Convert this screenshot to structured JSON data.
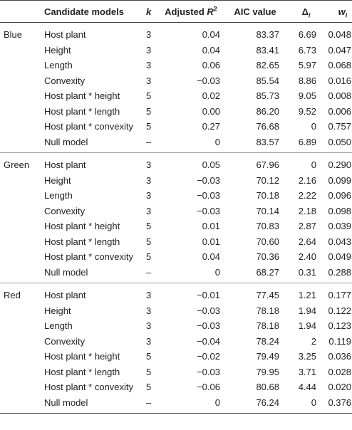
{
  "headers": {
    "model": "Candidate models",
    "k": "k",
    "r2_prefix": "Adjusted ",
    "r2_var": "R",
    "r2_sup": "2",
    "aic": "AIC value",
    "delta_sym": "Δ",
    "delta_sub": "i",
    "w_sym": "w",
    "w_sub": "i"
  },
  "groups": [
    {
      "name": "Blue",
      "rows": [
        {
          "model": "Host plant",
          "k": "3",
          "r2": "0.04",
          "aic": "83.37",
          "delta": "6.69",
          "w": "0.048"
        },
        {
          "model": "Height",
          "k": "3",
          "r2": "0.04",
          "aic": "83.41",
          "delta": "6.73",
          "w": "0.047"
        },
        {
          "model": "Length",
          "k": "3",
          "r2": "0.06",
          "aic": "82.65",
          "delta": "5.97",
          "w": "0.068"
        },
        {
          "model": "Convexity",
          "k": "3",
          "r2": "−0.03",
          "aic": "85.54",
          "delta": "8.86",
          "w": "0.016"
        },
        {
          "model": "Host plant * height",
          "k": "5",
          "r2": "0.02",
          "aic": "85.73",
          "delta": "9.05",
          "w": "0.008"
        },
        {
          "model": "Host plant * length",
          "k": "5",
          "r2": "0.00",
          "aic": "86.20",
          "delta": "9.52",
          "w": "0.006"
        },
        {
          "model": "Host plant * convexity",
          "k": "5",
          "r2": "0.27",
          "aic": "76.68",
          "delta": "0",
          "w": "0.757"
        },
        {
          "model": "Null model",
          "k": "–",
          "r2": "0",
          "aic": "83.57",
          "delta": "6.89",
          "w": "0.050"
        }
      ]
    },
    {
      "name": "Green",
      "rows": [
        {
          "model": "Host plant",
          "k": "3",
          "r2": "0.05",
          "aic": "67.96",
          "delta": "0",
          "w": "0.290"
        },
        {
          "model": "Height",
          "k": "3",
          "r2": "−0.03",
          "aic": "70.12",
          "delta": "2.16",
          "w": "0.099"
        },
        {
          "model": "Length",
          "k": "3",
          "r2": "−0.03",
          "aic": "70.18",
          "delta": "2.22",
          "w": "0.096"
        },
        {
          "model": "Convexity",
          "k": "3",
          "r2": "−0.03",
          "aic": "70.14",
          "delta": "2.18",
          "w": "0.098"
        },
        {
          "model": "Host plant * height",
          "k": "5",
          "r2": "0.01",
          "aic": "70.83",
          "delta": "2.87",
          "w": "0.039"
        },
        {
          "model": "Host plant * length",
          "k": "5",
          "r2": "0.01",
          "aic": "70.60",
          "delta": "2.64",
          "w": "0.043"
        },
        {
          "model": "Host plant * convexity",
          "k": "5",
          "r2": "0.04",
          "aic": "70.36",
          "delta": "2.40",
          "w": "0.049"
        },
        {
          "model": "Null model",
          "k": "–",
          "r2": "0",
          "aic": "68.27",
          "delta": "0.31",
          "w": "0.288"
        }
      ]
    },
    {
      "name": "Red",
      "rows": [
        {
          "model": "Host plant",
          "k": "3",
          "r2": "−0.01",
          "aic": "77.45",
          "delta": "1.21",
          "w": "0.177"
        },
        {
          "model": "Height",
          "k": "3",
          "r2": "−0.03",
          "aic": "78.18",
          "delta": "1.94",
          "w": "0.122"
        },
        {
          "model": "Length",
          "k": "3",
          "r2": "−0.03",
          "aic": "78.18",
          "delta": "1.94",
          "w": "0.123"
        },
        {
          "model": "Convexity",
          "k": "3",
          "r2": "−0.04",
          "aic": "78.24",
          "delta": "2",
          "w": "0.119"
        },
        {
          "model": "Host plant * height",
          "k": "5",
          "r2": "−0.02",
          "aic": "79.49",
          "delta": "3.25",
          "w": "0.036"
        },
        {
          "model": "Host plant * length",
          "k": "5",
          "r2": "−0.03",
          "aic": "79.95",
          "delta": "3.71",
          "w": "0.028"
        },
        {
          "model": "Host plant * convexity",
          "k": "5",
          "r2": "−0.06",
          "aic": "80.68",
          "delta": "4.44",
          "w": "0.020"
        },
        {
          "model": "Null model",
          "k": "–",
          "r2": "0",
          "aic": "76.24",
          "delta": "0",
          "w": "0.376"
        }
      ]
    }
  ]
}
